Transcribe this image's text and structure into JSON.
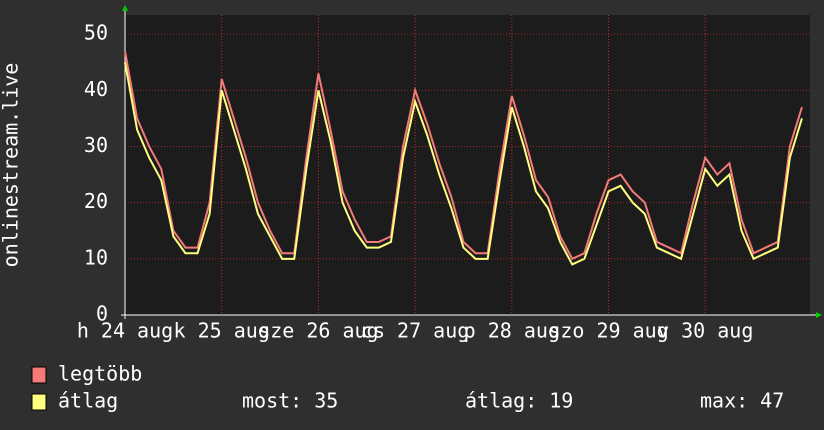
{
  "chart_data": {
    "type": "line",
    "ylabel": "onlinestream.live",
    "x": [
      0,
      3,
      6,
      9,
      12,
      15,
      18,
      21,
      24,
      27,
      30,
      33,
      36,
      39,
      42,
      45,
      48,
      51,
      54,
      57,
      60,
      63,
      66,
      69,
      72,
      75,
      78,
      81,
      84,
      87,
      90,
      93,
      96,
      99,
      102,
      105,
      108,
      111,
      114,
      117,
      120,
      123,
      126,
      129,
      132,
      135,
      138,
      141,
      144,
      147,
      150,
      153,
      156,
      159,
      162,
      165,
      168
    ],
    "xlim": [
      0,
      170
    ],
    "xticks": [
      {
        "value": 0,
        "label": "h 24 aug"
      },
      {
        "value": 24,
        "label": "k 25 aug"
      },
      {
        "value": 48,
        "label": "sze 26 aug"
      },
      {
        "value": 72,
        "label": "cs 27 aug"
      },
      {
        "value": 96,
        "label": "p 28 aug"
      },
      {
        "value": 120,
        "label": "szo 29 aug"
      },
      {
        "value": 144,
        "label": "v 30 aug"
      }
    ],
    "ylim": [
      0,
      53.4
    ],
    "yticks": [
      0,
      10,
      20,
      30,
      40,
      50
    ],
    "grid": true,
    "series": [
      {
        "name": "legtöbb",
        "color": "#f47a7a",
        "values": [
          47,
          35,
          30,
          26,
          15,
          12,
          12,
          20,
          42,
          35,
          28,
          20,
          15,
          11,
          11,
          28,
          43,
          33,
          22,
          17,
          13,
          13,
          14,
          30,
          40,
          34,
          27,
          21,
          13,
          11,
          11,
          26,
          39,
          32,
          24,
          21,
          14,
          10,
          11,
          18,
          24,
          25,
          22,
          20,
          13,
          12,
          11,
          20,
          28,
          25,
          27,
          17,
          11,
          12,
          13,
          30,
          37
        ]
      },
      {
        "name": "átlag",
        "color": "#ffff80",
        "values": [
          45,
          33,
          28,
          24,
          14,
          11,
          11,
          18,
          40,
          33,
          26,
          18,
          14,
          10,
          10,
          26,
          40,
          31,
          20,
          15,
          12,
          12,
          13,
          28,
          38,
          32,
          25,
          19,
          12,
          10,
          10,
          24,
          37,
          30,
          22,
          19,
          13,
          9,
          10,
          16,
          22,
          23,
          20,
          18,
          12,
          11,
          10,
          18,
          26,
          23,
          25,
          15,
          10,
          11,
          12,
          28,
          35
        ]
      }
    ],
    "stats": [
      {
        "label": "most:",
        "value": 35
      },
      {
        "label": "átlag:",
        "value": 19
      },
      {
        "label": "max:",
        "value": 47
      }
    ]
  }
}
